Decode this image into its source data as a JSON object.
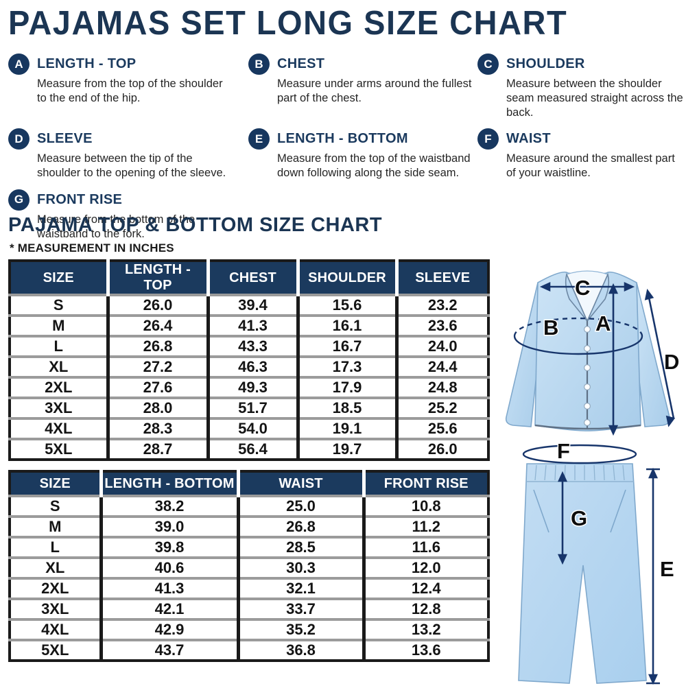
{
  "page": {
    "title": "PAJAMAS SET LONG SIZE CHART",
    "subtitle": "PAJAMA TOP & BOTTOM SIZE CHART",
    "note": "* MEASUREMENT IN INCHES"
  },
  "definitions": [
    {
      "letter": "A",
      "term": "LENGTH - TOP",
      "description": "Measure from the top of the shoulder to the end of the hip."
    },
    {
      "letter": "B",
      "term": "CHEST",
      "description": "Measure under arms around the fullest part of the chest."
    },
    {
      "letter": "C",
      "term": "SHOULDER",
      "description": "Measure between the shoulder seam measured straight across the back."
    },
    {
      "letter": "D",
      "term": "SLEEVE",
      "description": "Measure between the tip of the shoulder to the opening of the sleeve."
    },
    {
      "letter": "E",
      "term": "LENGTH - BOTTOM",
      "description": "Measure from the top of the waistband down following along the side seam."
    },
    {
      "letter": "F",
      "term": "WAIST",
      "description": "Measure around the smallest part of your waistline."
    },
    {
      "letter": "G",
      "term": "FRONT RISE",
      "description": "Measure from the bottom of the waistband to the fork."
    }
  ],
  "top_table": {
    "headers": [
      "SIZE",
      "LENGTH - TOP",
      "CHEST",
      "SHOULDER",
      "SLEEVE"
    ],
    "rows": [
      [
        "S",
        "26.0",
        "39.4",
        "15.6",
        "23.2"
      ],
      [
        "M",
        "26.4",
        "41.3",
        "16.1",
        "23.6"
      ],
      [
        "L",
        "26.8",
        "43.3",
        "16.7",
        "24.0"
      ],
      [
        "XL",
        "27.2",
        "46.3",
        "17.3",
        "24.4"
      ],
      [
        "2XL",
        "27.6",
        "49.3",
        "17.9",
        "24.8"
      ],
      [
        "3XL",
        "28.0",
        "51.7",
        "18.5",
        "25.2"
      ],
      [
        "4XL",
        "28.3",
        "54.0",
        "19.1",
        "25.6"
      ],
      [
        "5XL",
        "28.7",
        "56.4",
        "19.7",
        "26.0"
      ]
    ]
  },
  "bottom_table": {
    "headers": [
      "SIZE",
      "LENGTH - BOTTOM",
      "WAIST",
      "FRONT RISE"
    ],
    "rows": [
      [
        "S",
        "38.2",
        "25.0",
        "10.8"
      ],
      [
        "M",
        "39.0",
        "26.8",
        "11.2"
      ],
      [
        "L",
        "39.8",
        "28.5",
        "11.6"
      ],
      [
        "XL",
        "40.6",
        "30.3",
        "12.0"
      ],
      [
        "2XL",
        "41.3",
        "32.1",
        "12.4"
      ],
      [
        "3XL",
        "42.1",
        "33.7",
        "12.8"
      ],
      [
        "4XL",
        "42.9",
        "35.2",
        "13.2"
      ],
      [
        "5XL",
        "43.7",
        "36.8",
        "13.6"
      ]
    ]
  },
  "illustration": {
    "labels": {
      "length_top": "A",
      "chest": "B",
      "shoulder": "C",
      "sleeve": "D",
      "length_bottom": "E",
      "waist": "F",
      "front_rise": "G"
    }
  },
  "colors": {
    "navy": "#1b3a5e",
    "title_navy": "#1b3553",
    "arrow_blue": "#17356b",
    "garment_blue": "#b9d8f0",
    "row_separator_gray": "#9b9b9b",
    "table_border_black": "#1a1a1a"
  }
}
